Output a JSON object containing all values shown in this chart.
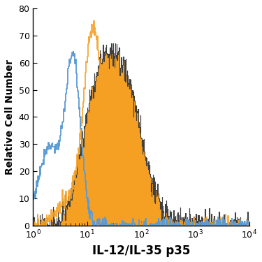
{
  "title": "",
  "xlabel": "IL-12/IL-35 p35",
  "ylabel": "Relative Cell Number",
  "xlim_log": [
    1,
    10000
  ],
  "ylim": [
    0,
    80
  ],
  "yticks": [
    0,
    10,
    20,
    30,
    40,
    50,
    60,
    70,
    80
  ],
  "blue_color": "#5b9bd5",
  "orange_color": "#f5a023",
  "dark_color": "#404040",
  "xlabel_fontsize": 12,
  "ylabel_fontsize": 10,
  "tick_fontsize": 9,
  "seed": 77
}
